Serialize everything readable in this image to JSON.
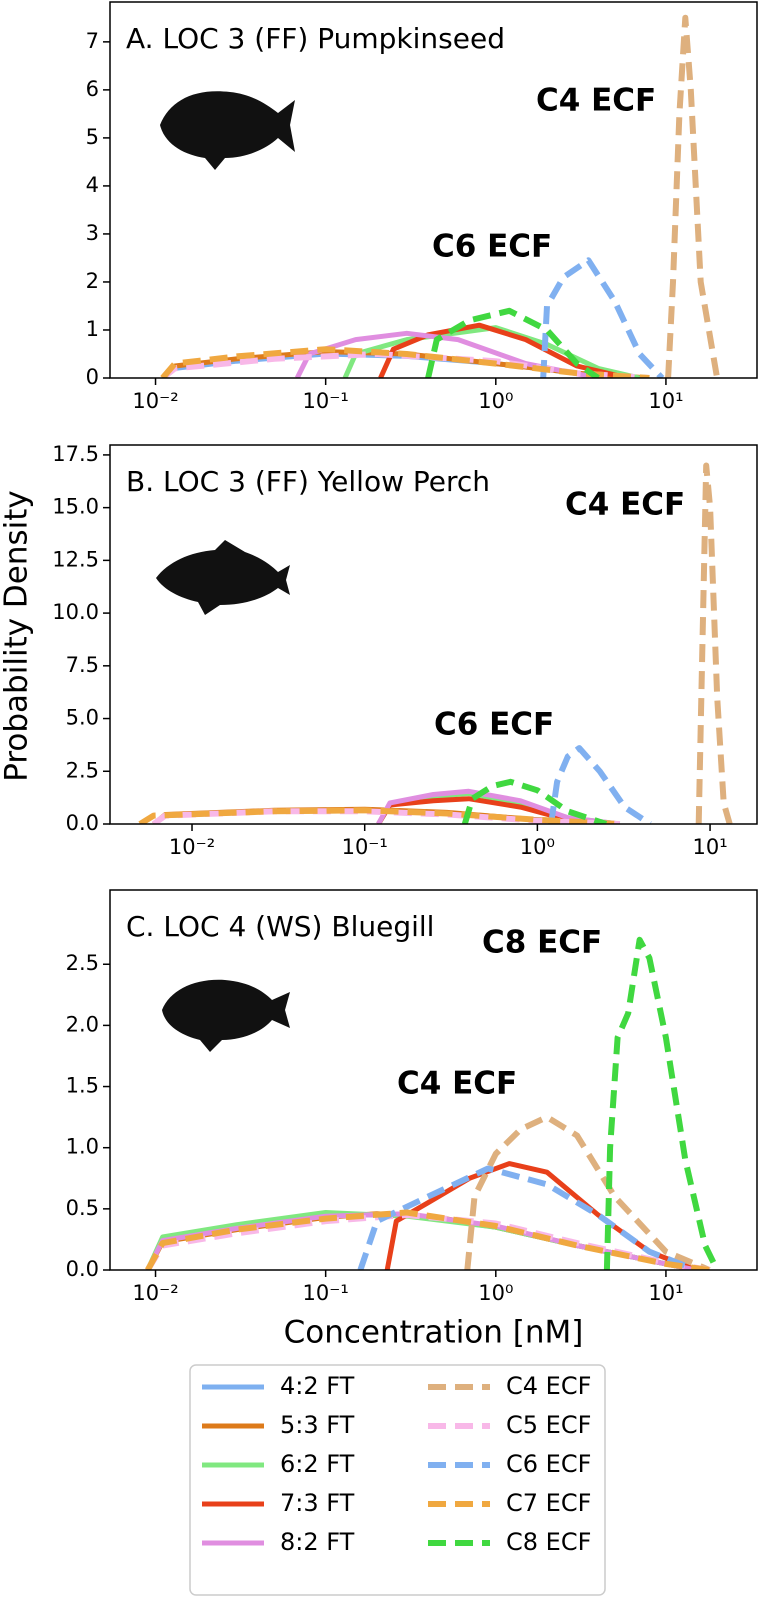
{
  "chart_data": [
    {
      "type": "line",
      "title": "A. LOC 3 (FF) Pumpkinseed",
      "xscale": "log",
      "xlim": [
        0.0054,
        34.3
      ],
      "ylim": [
        0,
        7.83
      ],
      "xticks": [
        {
          "value": 0.01,
          "label": "10⁻²"
        },
        {
          "value": 0.1,
          "label": "10⁻¹"
        },
        {
          "value": 1,
          "label": "10⁰"
        },
        {
          "value": 10,
          "label": "10¹"
        }
      ],
      "yticks": [
        0,
        1,
        2,
        3,
        4,
        5,
        6,
        7
      ],
      "annotations": [
        {
          "text": "C4 ECF",
          "color": "#deb07e"
        },
        {
          "text": "C6 ECF",
          "color": "#80b0f0"
        }
      ],
      "series": [
        {
          "name": "4:2 FT",
          "color": "#7eb0f0",
          "style": "solid",
          "x": [
            0.011,
            0.013,
            0.03,
            0.1,
            0.3,
            1,
            3,
            6
          ],
          "values": [
            0,
            0.2,
            0.35,
            0.5,
            0.45,
            0.3,
            0.1,
            0
          ]
        },
        {
          "name": "5:3 FT",
          "color": "#dd7a1a",
          "style": "solid",
          "x": [
            0.011,
            0.013,
            0.03,
            0.1,
            0.3,
            1,
            3,
            8
          ],
          "values": [
            0,
            0.25,
            0.4,
            0.55,
            0.5,
            0.3,
            0.1,
            0
          ]
        },
        {
          "name": "6:2 FT",
          "color": "#80e880",
          "style": "solid",
          "x": [
            0.13,
            0.15,
            0.3,
            1,
            2,
            4,
            7
          ],
          "values": [
            0,
            0.5,
            0.8,
            1.05,
            0.7,
            0.2,
            0
          ]
        },
        {
          "name": "7:3 FT",
          "color": "#e8401a",
          "style": "solid",
          "x": [
            0.21,
            0.25,
            0.4,
            0.8,
            1.5,
            3,
            6
          ],
          "values": [
            0,
            0.6,
            0.9,
            1.1,
            0.8,
            0.25,
            0
          ]
        },
        {
          "name": "8:2 FT",
          "color": "#e08ee0",
          "style": "solid",
          "x": [
            0.068,
            0.08,
            0.15,
            0.3,
            0.6,
            1.5,
            4
          ],
          "values": [
            0,
            0.5,
            0.8,
            0.93,
            0.8,
            0.3,
            0
          ]
        },
        {
          "name": "C4 ECF",
          "color": "#deb07e",
          "style": "dashed",
          "x": [
            10.3,
            11,
            12,
            13,
            14,
            16,
            20
          ],
          "values": [
            0,
            2,
            5.5,
            7.5,
            6,
            2,
            0
          ]
        },
        {
          "name": "C5 ECF",
          "color": "#f8b8e8",
          "style": "dashed",
          "x": [
            0.011,
            0.013,
            0.05,
            0.2,
            1,
            3,
            8
          ],
          "values": [
            0,
            0.2,
            0.4,
            0.5,
            0.35,
            0.1,
            0
          ]
        },
        {
          "name": "C6 ECF",
          "color": "#80b0f0",
          "style": "dashed",
          "x": [
            1.9,
            2.0,
            2.5,
            3.5,
            5,
            7,
            9.5
          ],
          "values": [
            0,
            1.5,
            2.1,
            2.45,
            1.6,
            0.5,
            0
          ]
        },
        {
          "name": "C7 ECF",
          "color": "#f0a840",
          "style": "dashed",
          "x": [
            0.011,
            0.013,
            0.03,
            0.1,
            0.3,
            1,
            3,
            8
          ],
          "values": [
            0,
            0.3,
            0.45,
            0.6,
            0.5,
            0.3,
            0.1,
            0
          ]
        },
        {
          "name": "C8 ECF",
          "color": "#40d840",
          "style": "dashed",
          "x": [
            0.4,
            0.45,
            0.7,
            1.2,
            2,
            3,
            4
          ],
          "values": [
            0,
            0.8,
            1.2,
            1.4,
            1.0,
            0.3,
            0
          ]
        }
      ]
    },
    {
      "type": "line",
      "title": "B. LOC 3 (FF) Yellow Perch",
      "ylabel": "Probability Density",
      "xscale": "log",
      "xlim": [
        0.00335,
        18.7
      ],
      "ylim": [
        0,
        17.97
      ],
      "xticks": [
        {
          "value": 0.01,
          "label": "10⁻²"
        },
        {
          "value": 0.1,
          "label": "10⁻¹"
        },
        {
          "value": 1,
          "label": "10⁰"
        },
        {
          "value": 10,
          "label": "10¹"
        }
      ],
      "yticks": [
        {
          "value": 0,
          "label": "0.0"
        },
        2.5,
        {
          "value": 5,
          "label": "5.0"
        },
        7.5,
        {
          "value": 10,
          "label": "10.0"
        },
        12.5,
        {
          "value": 15,
          "label": "15.0"
        },
        17.5
      ],
      "annotations": [
        {
          "text": "C4 ECF",
          "color": "#deb07e"
        },
        {
          "text": "C6 ECF",
          "color": "#80b0f0"
        }
      ],
      "series": [
        {
          "name": "4:2 FT",
          "color": "#7eb0f0",
          "style": "solid",
          "x": [
            0.006,
            0.007,
            0.03,
            0.1,
            0.3,
            1,
            3
          ],
          "values": [
            0,
            0.4,
            0.6,
            0.65,
            0.5,
            0.2,
            0
          ]
        },
        {
          "name": "5:3 FT",
          "color": "#dd7a1a",
          "style": "solid",
          "x": [
            0.006,
            0.007,
            0.03,
            0.1,
            0.3,
            1,
            3
          ],
          "values": [
            0,
            0.45,
            0.65,
            0.7,
            0.55,
            0.2,
            0
          ]
        },
        {
          "name": "6:2 FT",
          "color": "#80e880",
          "style": "solid",
          "x": [
            0.12,
            0.14,
            0.25,
            0.4,
            0.8,
            1.5,
            3
          ],
          "values": [
            0,
            0.9,
            1.3,
            1.45,
            1.0,
            0.3,
            0
          ]
        },
        {
          "name": "7:3 FT",
          "color": "#e8401a",
          "style": "solid",
          "x": [
            0.12,
            0.14,
            0.25,
            0.4,
            0.8,
            1.5,
            3
          ],
          "values": [
            0,
            0.9,
            1.1,
            1.2,
            0.8,
            0.2,
            0
          ]
        },
        {
          "name": "8:2 FT",
          "color": "#e08ee0",
          "style": "solid",
          "x": [
            0.12,
            0.14,
            0.25,
            0.4,
            0.8,
            1.5,
            3
          ],
          "values": [
            0,
            1.0,
            1.4,
            1.55,
            1.1,
            0.3,
            0
          ]
        },
        {
          "name": "C4 ECF",
          "color": "#deb07e",
          "style": "dashed",
          "x": [
            8.6,
            9,
            9.5,
            10,
            11,
            12,
            13
          ],
          "values": [
            0,
            8,
            17,
            15,
            6,
            1,
            0
          ]
        },
        {
          "name": "C5 ECF",
          "color": "#f8b8e8",
          "style": "dashed",
          "x": [
            0.006,
            0.007,
            0.03,
            0.1,
            0.3,
            1,
            3
          ],
          "values": [
            0,
            0.4,
            0.6,
            0.6,
            0.45,
            0.15,
            0
          ]
        },
        {
          "name": "C6 ECF",
          "color": "#80b0f0",
          "style": "dashed",
          "x": [
            1.2,
            1.3,
            1.5,
            1.75,
            2.3,
            3.2,
            4.5
          ],
          "values": [
            0,
            2,
            3.2,
            3.6,
            2.5,
            0.8,
            0
          ]
        },
        {
          "name": "C7 ECF",
          "color": "#f0a840",
          "style": "dashed",
          "x": [
            0.005,
            0.006,
            0.03,
            0.1,
            0.3,
            1,
            3
          ],
          "values": [
            0,
            0.4,
            0.6,
            0.65,
            0.5,
            0.2,
            0
          ]
        },
        {
          "name": "C8 ECF",
          "color": "#40d840",
          "style": "dashed",
          "x": [
            0.38,
            0.42,
            0.55,
            0.7,
            1,
            1.5,
            2.5
          ],
          "values": [
            0,
            1.2,
            1.8,
            2.0,
            1.6,
            0.6,
            0
          ]
        }
      ]
    },
    {
      "type": "line",
      "title": "C. LOC 4 (WS) Bluegill",
      "xlabel": "Concentration [nM]",
      "xscale": "log",
      "xlim": [
        0.0054,
        34.3
      ],
      "ylim": [
        0,
        3.107
      ],
      "xticks": [
        {
          "value": 0.01,
          "label": "10⁻²"
        },
        {
          "value": 0.1,
          "label": "10⁻¹"
        },
        {
          "value": 1,
          "label": "10⁰"
        },
        {
          "value": 10,
          "label": "10¹"
        }
      ],
      "yticks": [
        {
          "value": 0,
          "label": "0.0"
        },
        0.5,
        {
          "value": 1,
          "label": "1.0"
        },
        1.5,
        {
          "value": 2,
          "label": "2.0"
        },
        2.5
      ],
      "annotations": [
        {
          "text": "C8 ECF",
          "color": "#40d840"
        },
        {
          "text": "C4 ECF",
          "color": "#deb07e"
        }
      ],
      "series": [
        {
          "name": "4:2 FT",
          "color": "#7eb0f0",
          "style": "solid",
          "x": [
            0.009,
            0.011,
            0.03,
            0.1,
            0.3,
            1,
            3,
            10,
            15
          ],
          "values": [
            0,
            0.25,
            0.35,
            0.45,
            0.45,
            0.35,
            0.2,
            0.05,
            0
          ]
        },
        {
          "name": "5:3 FT",
          "color": "#dd7a1a",
          "style": "solid",
          "x": [
            0.009,
            0.011,
            0.03,
            0.1,
            0.2,
            0.5,
            1,
            3,
            10,
            15
          ],
          "values": [
            0,
            0.23,
            0.33,
            0.43,
            0.46,
            0.42,
            0.35,
            0.2,
            0.05,
            0
          ]
        },
        {
          "name": "6:2 FT",
          "color": "#80e880",
          "style": "solid",
          "x": [
            0.009,
            0.011,
            0.03,
            0.1,
            0.3,
            1,
            3,
            10,
            15
          ],
          "values": [
            0,
            0.27,
            0.37,
            0.47,
            0.44,
            0.35,
            0.2,
            0.05,
            0
          ]
        },
        {
          "name": "7:3 FT",
          "color": "#e8401a",
          "style": "solid",
          "x": [
            0.23,
            0.26,
            0.4,
            0.7,
            1.2,
            2,
            4,
            8,
            15
          ],
          "values": [
            0,
            0.4,
            0.55,
            0.75,
            0.87,
            0.8,
            0.45,
            0.15,
            0
          ]
        },
        {
          "name": "8:2 FT",
          "color": "#e08ee0",
          "style": "solid",
          "x": [
            0.009,
            0.011,
            0.03,
            0.1,
            0.3,
            1,
            3,
            10,
            15
          ],
          "values": [
            0,
            0.24,
            0.34,
            0.44,
            0.46,
            0.36,
            0.2,
            0.05,
            0
          ]
        },
        {
          "name": "C4 ECF",
          "color": "#deb07e",
          "style": "dashed",
          "x": [
            0.68,
            0.75,
            1,
            1.4,
            2,
            3,
            5,
            10,
            18
          ],
          "values": [
            0,
            0.6,
            0.95,
            1.15,
            1.25,
            1.1,
            0.6,
            0.15,
            0
          ]
        },
        {
          "name": "C5 ECF",
          "color": "#f8b8e8",
          "style": "dashed",
          "x": [
            0.009,
            0.011,
            0.03,
            0.1,
            0.3,
            1,
            3,
            10,
            18
          ],
          "values": [
            0,
            0.2,
            0.3,
            0.4,
            0.45,
            0.38,
            0.22,
            0.06,
            0
          ]
        },
        {
          "name": "C6 ECF",
          "color": "#80b0f0",
          "style": "dashed",
          "x": [
            0.16,
            0.2,
            0.4,
            0.9,
            2,
            4,
            8,
            15
          ],
          "values": [
            0,
            0.4,
            0.6,
            0.83,
            0.7,
            0.45,
            0.15,
            0
          ]
        },
        {
          "name": "C7 ECF",
          "color": "#f0a840",
          "style": "dashed",
          "x": [
            0.009,
            0.011,
            0.03,
            0.1,
            0.3,
            1,
            3,
            10,
            18
          ],
          "values": [
            0,
            0.22,
            0.33,
            0.42,
            0.47,
            0.36,
            0.2,
            0.05,
            0
          ]
        },
        {
          "name": "C8 ECF",
          "color": "#40d840",
          "style": "dashed",
          "x": [
            4.5,
            4.7,
            5.2,
            6,
            7,
            8,
            10,
            13,
            17,
            20
          ],
          "values": [
            0,
            1.0,
            1.9,
            2.1,
            2.7,
            2.55,
            1.9,
            0.9,
            0.2,
            0
          ]
        }
      ]
    }
  ]
}
